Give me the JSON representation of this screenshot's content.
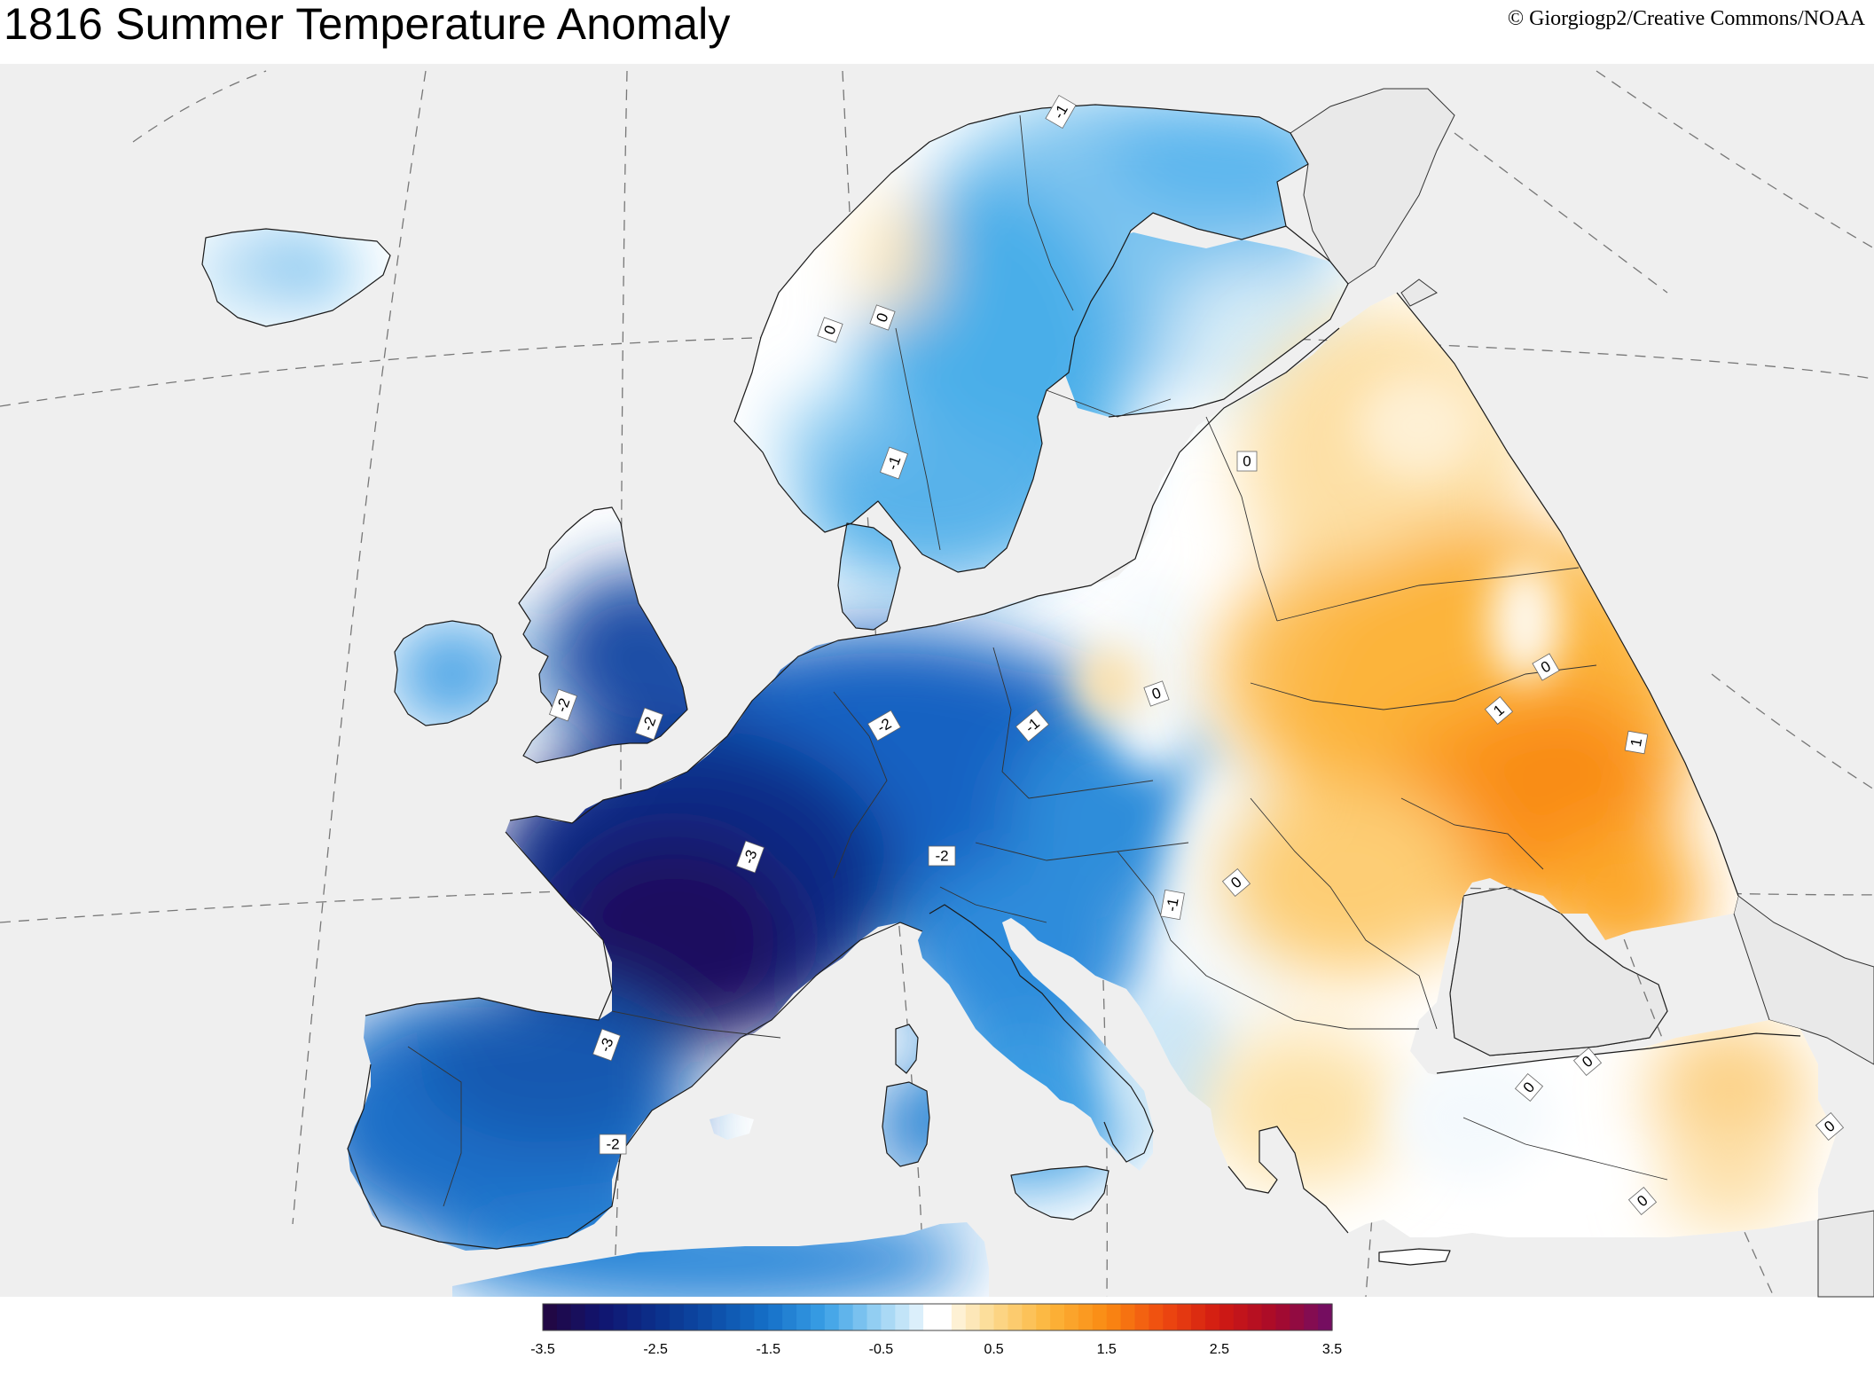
{
  "title": "1816 Summer Temperature Anomaly",
  "credit": "© Giorgiogp2/Creative Commons/NOAA",
  "colors": {
    "ocean": "#efefef",
    "coast": "#1a1a1a",
    "graticule": "#777777"
  },
  "colorbar": {
    "min": -3.5,
    "max": 3.5,
    "tick_labels": [
      "-3.5",
      "-2.5",
      "-1.5",
      "-0.5",
      "0.5",
      "1.5",
      "2.5",
      "3.5"
    ],
    "stops": [
      {
        "v": -3.5,
        "c": "#23063f"
      },
      {
        "v": -3.0,
        "c": "#11146e"
      },
      {
        "v": -2.5,
        "c": "#0b2f8a"
      },
      {
        "v": -2.0,
        "c": "#0d4ea8"
      },
      {
        "v": -1.5,
        "c": "#1570c8"
      },
      {
        "v": -1.0,
        "c": "#3aa0e6"
      },
      {
        "v": -0.5,
        "c": "#9ed4f4"
      },
      {
        "v": 0.0,
        "c": "#ffffff"
      },
      {
        "v": 0.5,
        "c": "#fcd98d"
      },
      {
        "v": 1.0,
        "c": "#fcb43a"
      },
      {
        "v": 1.5,
        "c": "#fa8a12"
      },
      {
        "v": 2.0,
        "c": "#ef4a10"
      },
      {
        "v": 2.5,
        "c": "#d11a12"
      },
      {
        "v": 3.0,
        "c": "#a80a2a"
      },
      {
        "v": 3.5,
        "c": "#6e0d68"
      }
    ]
  },
  "contour_labels": [
    "-1",
    "0",
    "0",
    "-1",
    "-2",
    "-2",
    "-2",
    "-1",
    "0",
    "0",
    "-3",
    "-2",
    "-3",
    "-2",
    "-1",
    "0",
    "0",
    "1",
    "1",
    "0",
    "0",
    "0",
    "0"
  ]
}
